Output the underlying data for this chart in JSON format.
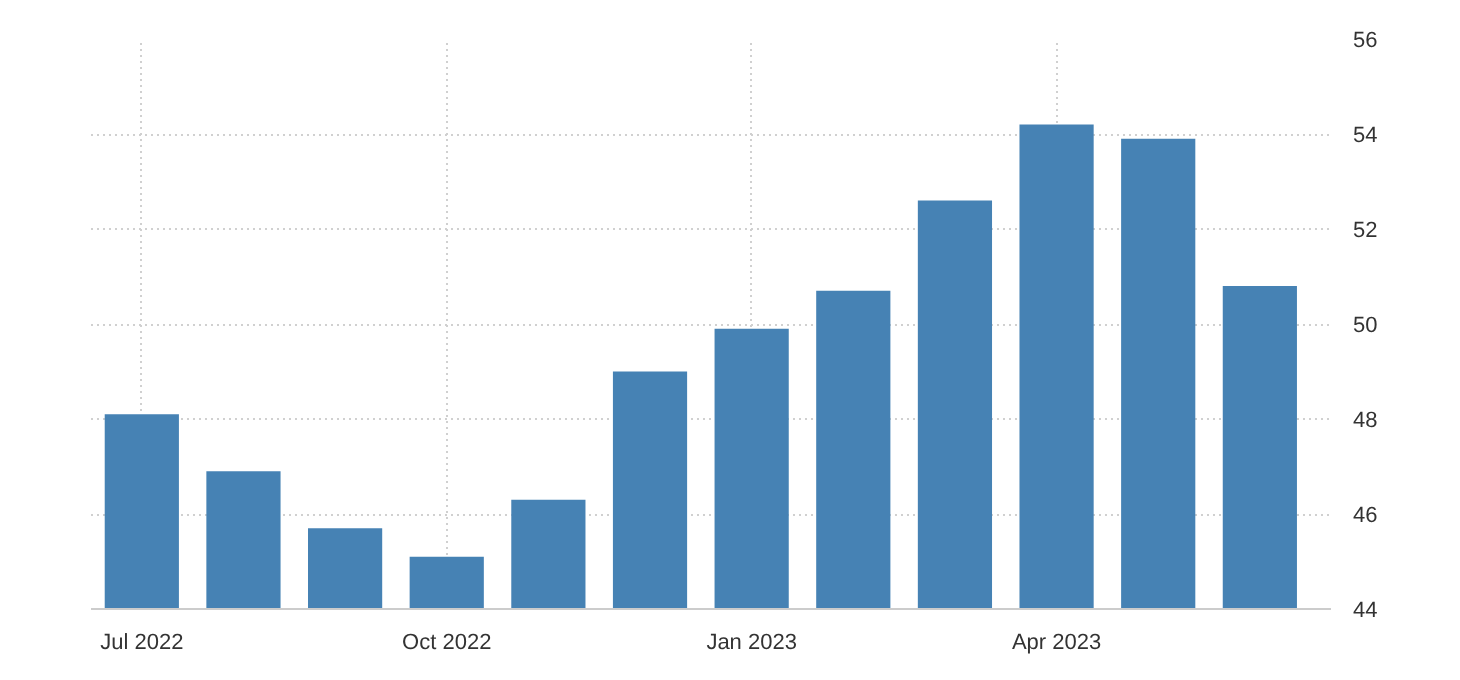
{
  "chart_data": {
    "type": "bar",
    "categories": [
      "Jul 2022",
      null,
      null,
      "Oct 2022",
      null,
      null,
      "Jan 2023",
      null,
      null,
      "Apr 2023",
      null,
      null
    ],
    "values": [
      48.1,
      46.9,
      45.7,
      45.1,
      46.3,
      49.0,
      49.9,
      50.7,
      52.6,
      54.2,
      53.9,
      50.8
    ],
    "color": "#4682b4",
    "ylim": [
      44,
      56
    ],
    "yticks": [
      44,
      46,
      48,
      50,
      52,
      54,
      56
    ],
    "grid": true
  }
}
